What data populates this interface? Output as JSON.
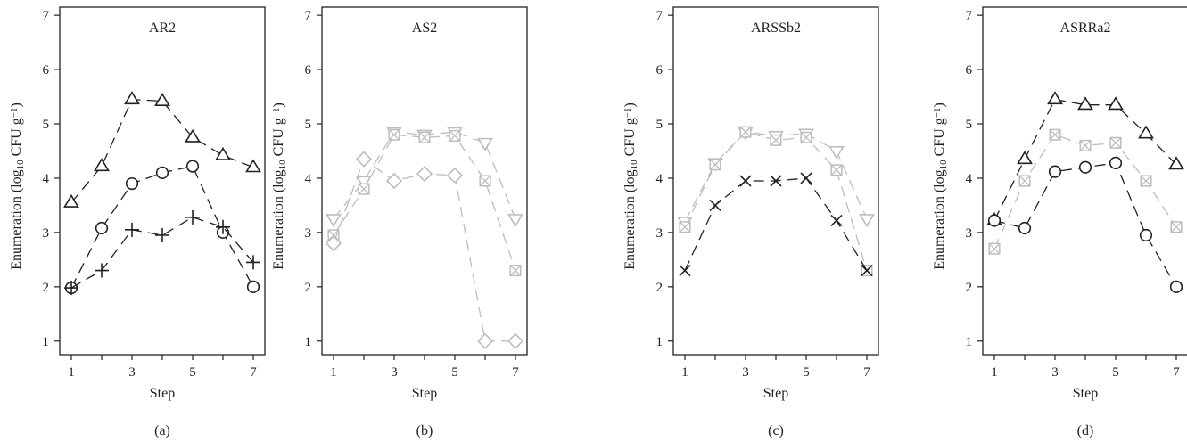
{
  "chart_data": [
    {
      "type": "line",
      "letter": "(a)",
      "title": "AR2",
      "xlabel": "Step",
      "ylabel_main": "Enumeration (log",
      "ylabel_sub": "10",
      "ylabel_unit": " CFU g",
      "ylabel_sup": "−1",
      "ylabel_end": ")",
      "x_ticks": [
        "1",
        "3",
        "5",
        "7"
      ],
      "y_ticks": [
        "1",
        "2",
        "3",
        "4",
        "5",
        "6",
        "7"
      ],
      "xlim": [
        1,
        7
      ],
      "ylim": [
        0.75,
        7.15
      ],
      "x": [
        1,
        2,
        3,
        4,
        5,
        6,
        7
      ],
      "series": [
        {
          "marker": "triangle",
          "color": "#222222",
          "dash": "12,7",
          "values": [
            3.55,
            4.22,
            5.45,
            5.42,
            4.75,
            4.42,
            4.2
          ]
        },
        {
          "marker": "circle",
          "color": "#222222",
          "dash": "12,7",
          "values": [
            1.98,
            3.08,
            3.9,
            4.1,
            4.22,
            3.0,
            2.0
          ]
        },
        {
          "marker": "plus",
          "color": "#222222",
          "dash": "12,7",
          "values": [
            1.98,
            2.3,
            3.05,
            2.95,
            3.28,
            3.1,
            2.45
          ]
        }
      ]
    },
    {
      "type": "line",
      "letter": "(b)",
      "title": "AS2",
      "xlabel": "Step",
      "ylabel_main": "Enumeration (log",
      "ylabel_sub": "10",
      "ylabel_unit": " CFU g",
      "ylabel_sup": "−1",
      "ylabel_end": ")",
      "x_ticks": [
        "1",
        "3",
        "5",
        "7"
      ],
      "y_ticks": [
        "1",
        "2",
        "3",
        "4",
        "5",
        "6",
        "7"
      ],
      "xlim": [
        1,
        7
      ],
      "ylim": [
        0.75,
        7.15
      ],
      "x": [
        1,
        2,
        3,
        4,
        5,
        6,
        7
      ],
      "series": [
        {
          "marker": "triangle-down",
          "color": "#bdbdbd",
          "dash": "12,7",
          "values": [
            3.25,
            3.95,
            4.85,
            4.8,
            4.85,
            4.65,
            3.25
          ]
        },
        {
          "marker": "boxx",
          "color": "#bdbdbd",
          "dash": "12,7",
          "values": [
            2.95,
            3.8,
            4.8,
            4.75,
            4.78,
            3.95,
            2.3
          ]
        },
        {
          "marker": "diamond",
          "color": "#bdbdbd",
          "dash": "12,7",
          "values": [
            2.8,
            4.35,
            3.95,
            4.08,
            4.05,
            1.0,
            1.0
          ]
        }
      ]
    },
    {
      "type": "line",
      "letter": "(c)",
      "title": "ARSSb2",
      "xlabel": "Step",
      "ylabel_main": "Enumeration (log",
      "ylabel_sub": "10",
      "ylabel_unit": " CFU g",
      "ylabel_sup": "−1",
      "ylabel_end": ")",
      "x_ticks": [
        "1",
        "3",
        "5",
        "7"
      ],
      "y_ticks": [
        "1",
        "2",
        "3",
        "4",
        "5",
        "6",
        "7"
      ],
      "xlim": [
        1,
        7
      ],
      "ylim": [
        0.75,
        7.15
      ],
      "x": [
        1,
        2,
        3,
        4,
        5,
        6,
        7
      ],
      "series": [
        {
          "marker": "triangle-down",
          "color": "#bdbdbd",
          "dash": "12,7",
          "values": [
            3.2,
            4.28,
            4.85,
            4.78,
            4.82,
            4.5,
            3.25
          ]
        },
        {
          "marker": "boxx",
          "color": "#bdbdbd",
          "dash": "12,7",
          "values": [
            3.1,
            4.25,
            4.85,
            4.7,
            4.75,
            4.15,
            2.3
          ]
        },
        {
          "marker": "cross",
          "color": "#222222",
          "dash": "12,7",
          "values": [
            2.3,
            3.5,
            3.95,
            3.95,
            4.0,
            3.22,
            2.3
          ]
        }
      ]
    },
    {
      "type": "line",
      "letter": "(d)",
      "title": "ASRRa2",
      "xlabel": "Step",
      "ylabel_main": "Enumeration (log",
      "ylabel_sub": "10",
      "ylabel_unit": " CFU g",
      "ylabel_sup": "−1",
      "ylabel_end": ")",
      "x_ticks": [
        "1",
        "3",
        "5",
        "7"
      ],
      "y_ticks": [
        "1",
        "2",
        "3",
        "4",
        "5",
        "6",
        "7"
      ],
      "xlim": [
        1,
        7
      ],
      "ylim": [
        0.75,
        7.15
      ],
      "x": [
        1,
        2,
        3,
        4,
        5,
        6,
        7
      ],
      "series": [
        {
          "marker": "triangle",
          "color": "#222222",
          "dash": "12,7",
          "values": [
            3.22,
            4.35,
            5.45,
            5.35,
            5.35,
            4.82,
            4.25
          ]
        },
        {
          "marker": "boxx",
          "color": "#bdbdbd",
          "dash": "12,7",
          "values": [
            2.7,
            3.95,
            4.8,
            4.6,
            4.65,
            3.95,
            3.1
          ]
        },
        {
          "marker": "circle",
          "color": "#222222",
          "dash": "12,7",
          "values": [
            3.22,
            3.08,
            4.12,
            4.2,
            4.28,
            2.95,
            2.0
          ]
        }
      ]
    }
  ]
}
